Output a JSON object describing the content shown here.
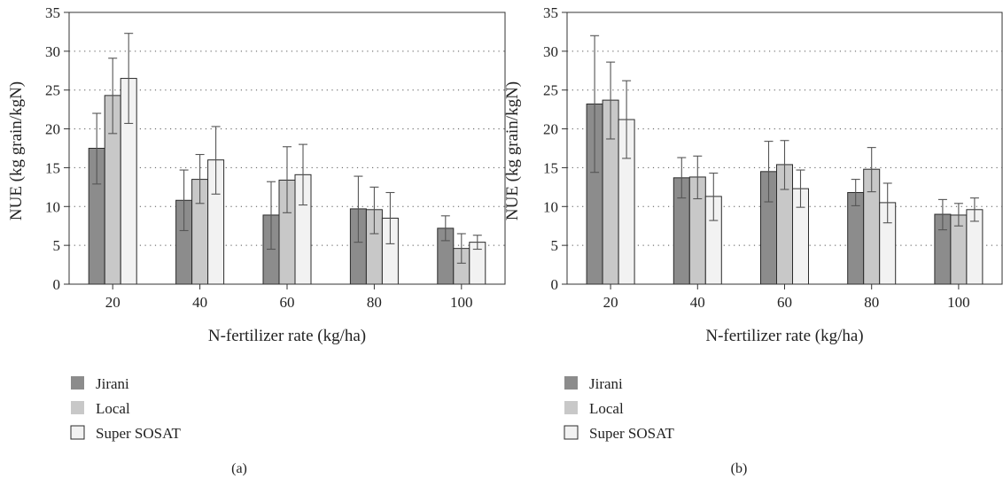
{
  "palette": {
    "jirani": "#8c8c8c",
    "local": "#c8c8c8",
    "super_sosat": "#f2f2f2"
  },
  "legend": [
    "Jirani",
    "Local",
    "Super SOSAT"
  ],
  "chart_data": [
    {
      "type": "bar",
      "caption": "(a)",
      "xlabel": "N-fertilizer rate (kg/ha)",
      "ylabel": "NUE (kg grain/kgN)",
      "categories": [
        "20",
        "40",
        "60",
        "80",
        "100"
      ],
      "ylim": [
        0,
        35
      ],
      "yticks": [
        0,
        5,
        10,
        15,
        20,
        25,
        30,
        35
      ],
      "grid": true,
      "legend_position": "bottom-left",
      "series": [
        {
          "name": "Jirani",
          "values": [
            17.5,
            10.8,
            8.9,
            9.7,
            7.2
          ],
          "err_low": [
            12.9,
            6.9,
            4.5,
            5.4,
            5.6
          ],
          "err_high": [
            22.0,
            14.7,
            13.2,
            13.9,
            8.8
          ]
        },
        {
          "name": "Local",
          "values": [
            24.3,
            13.5,
            13.4,
            9.6,
            4.6
          ],
          "err_low": [
            19.4,
            10.4,
            9.2,
            6.5,
            2.7
          ],
          "err_high": [
            29.1,
            16.7,
            17.7,
            12.5,
            6.5
          ]
        },
        {
          "name": "Super SOSAT",
          "values": [
            26.5,
            16.0,
            14.1,
            8.5,
            5.4
          ],
          "err_low": [
            20.7,
            11.6,
            10.2,
            5.2,
            4.5
          ],
          "err_high": [
            32.3,
            20.3,
            18.0,
            11.8,
            6.3
          ]
        }
      ]
    },
    {
      "type": "bar",
      "caption": "(b)",
      "xlabel": "N-fertilizer rate (kg/ha)",
      "ylabel": "NUE (kg grain/kgN)",
      "categories": [
        "20",
        "40",
        "60",
        "80",
        "100"
      ],
      "ylim": [
        0,
        35
      ],
      "yticks": [
        0,
        5,
        10,
        15,
        20,
        25,
        30,
        35
      ],
      "grid": true,
      "legend_position": "bottom-left",
      "series": [
        {
          "name": "Jirani",
          "values": [
            23.2,
            13.7,
            14.5,
            11.8,
            9.0
          ],
          "err_low": [
            14.4,
            11.1,
            10.6,
            10.1,
            7.0
          ],
          "err_high": [
            32.0,
            16.3,
            18.4,
            13.5,
            10.9
          ]
        },
        {
          "name": "Local",
          "values": [
            23.7,
            13.8,
            15.4,
            14.8,
            8.9
          ],
          "err_low": [
            18.7,
            11.0,
            12.2,
            11.9,
            7.5
          ],
          "err_high": [
            28.6,
            16.5,
            18.5,
            17.6,
            10.4
          ]
        },
        {
          "name": "Super SOSAT",
          "values": [
            21.2,
            11.3,
            12.3,
            10.5,
            9.6
          ],
          "err_low": [
            16.2,
            8.2,
            9.9,
            7.9,
            8.1
          ],
          "err_high": [
            26.2,
            14.3,
            14.7,
            13.0,
            11.1
          ]
        }
      ]
    }
  ]
}
